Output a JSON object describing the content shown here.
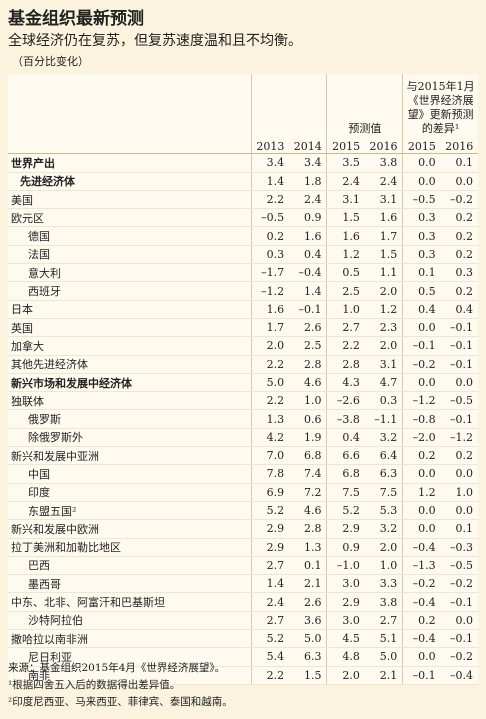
{
  "header": {
    "title": "基金组织最新预测",
    "subtitle": "全球经济仍在复苏，但复苏速度温和且不均衡。",
    "note": "（百分比变化）"
  },
  "table": {
    "group_headers": [
      "预测值",
      "与2015年1月《世界经济展望》更新预测的差异¹"
    ],
    "columns": [
      "2013",
      "2014",
      "2015",
      "2016",
      "2015",
      "2016"
    ],
    "rows": [
      [
        "世界产出",
        "3.4",
        "3.4",
        "3.5",
        "3.8",
        "0.0",
        "0.1"
      ],
      [
        "先进经济体",
        "1.4",
        "1.8",
        "2.4",
        "2.4",
        "0.0",
        "0.0"
      ],
      [
        "美国",
        "2.2",
        "2.4",
        "3.1",
        "3.1",
        "–0.5",
        "–0.2"
      ],
      [
        "欧元区",
        "–0.5",
        "0.9",
        "1.5",
        "1.6",
        "0.3",
        "0.2"
      ],
      [
        "德国",
        "0.2",
        "1.6",
        "1.6",
        "1.7",
        "0.3",
        "0.2"
      ],
      [
        "法国",
        "0.3",
        "0.4",
        "1.2",
        "1.5",
        "0.3",
        "0.2"
      ],
      [
        "意大利",
        "–1.7",
        "–0.4",
        "0.5",
        "1.1",
        "0.1",
        "0.3"
      ],
      [
        "西班牙",
        "–1.2",
        "1.4",
        "2.5",
        "2.0",
        "0.5",
        "0.2"
      ],
      [
        "日本",
        "1.6",
        "–0.1",
        "1.0",
        "1.2",
        "0.4",
        "0.4"
      ],
      [
        "英国",
        "1.7",
        "2.6",
        "2.7",
        "2.3",
        "0.0",
        "–0.1"
      ],
      [
        "加拿大",
        "2.0",
        "2.5",
        "2.2",
        "2.0",
        "–0.1",
        "–0.1"
      ],
      [
        "其他先进经济体",
        "2.2",
        "2.8",
        "2.8",
        "3.1",
        "–0.2",
        "–0.1"
      ],
      [
        "新兴市场和发展中经济体",
        "5.0",
        "4.6",
        "4.3",
        "4.7",
        "0.0",
        "0.0"
      ],
      [
        "独联体",
        "2.2",
        "1.0",
        "–2.6",
        "0.3",
        "–1.2",
        "–0.5"
      ],
      [
        "俄罗斯",
        "1.3",
        "0.6",
        "–3.8",
        "–1.1",
        "–0.8",
        "–0.1"
      ],
      [
        "除俄罗斯外",
        "4.2",
        "1.9",
        "0.4",
        "3.2",
        "–2.0",
        "–1.2"
      ],
      [
        "新兴和发展中亚洲",
        "7.0",
        "6.8",
        "6.6",
        "6.4",
        "0.2",
        "0.2"
      ],
      [
        "中国",
        "7.8",
        "7.4",
        "6.8",
        "6.3",
        "0.0",
        "0.0"
      ],
      [
        "印度",
        "6.9",
        "7.2",
        "7.5",
        "7.5",
        "1.2",
        "1.0"
      ],
      [
        "东盟五国²",
        "5.2",
        "4.6",
        "5.2",
        "5.3",
        "0.0",
        "0.0"
      ],
      [
        "新兴和发展中欧洲",
        "2.9",
        "2.8",
        "2.9",
        "3.2",
        "0.0",
        "0.1"
      ],
      [
        "拉丁美洲和加勒比地区",
        "2.9",
        "1.3",
        "0.9",
        "2.0",
        "–0.4",
        "–0.3"
      ],
      [
        "巴西",
        "2.7",
        "0.1",
        "–1.0",
        "1.0",
        "–1.3",
        "–0.5"
      ],
      [
        "墨西哥",
        "1.4",
        "2.1",
        "3.0",
        "3.3",
        "–0.2",
        "–0.2"
      ],
      [
        "中东、北非、阿富汗和巴基斯坦",
        "2.4",
        "2.6",
        "2.9",
        "3.8",
        "–0.4",
        "–0.1"
      ],
      [
        "沙特阿拉伯",
        "2.7",
        "3.6",
        "3.0",
        "2.7",
        "0.2",
        "0.0"
      ],
      [
        "撒哈拉以南非洲",
        "5.2",
        "5.0",
        "4.5",
        "5.1",
        "–0.4",
        "–0.1"
      ],
      [
        "尼日利亚",
        "5.4",
        "6.3",
        "4.8",
        "5.0",
        "0.0",
        "–0.2"
      ],
      [
        "南非",
        "2.2",
        "1.5",
        "2.0",
        "2.1",
        "–0.1",
        "–0.4"
      ]
    ]
  },
  "footnotes": [
    "来源：基金组织2015年4月《世界经济展望》。",
    "¹根据四舍五入后的数据得出差异值。",
    "²印度尼西亚、马来西亚、菲律宾、泰国和越南。"
  ]
}
